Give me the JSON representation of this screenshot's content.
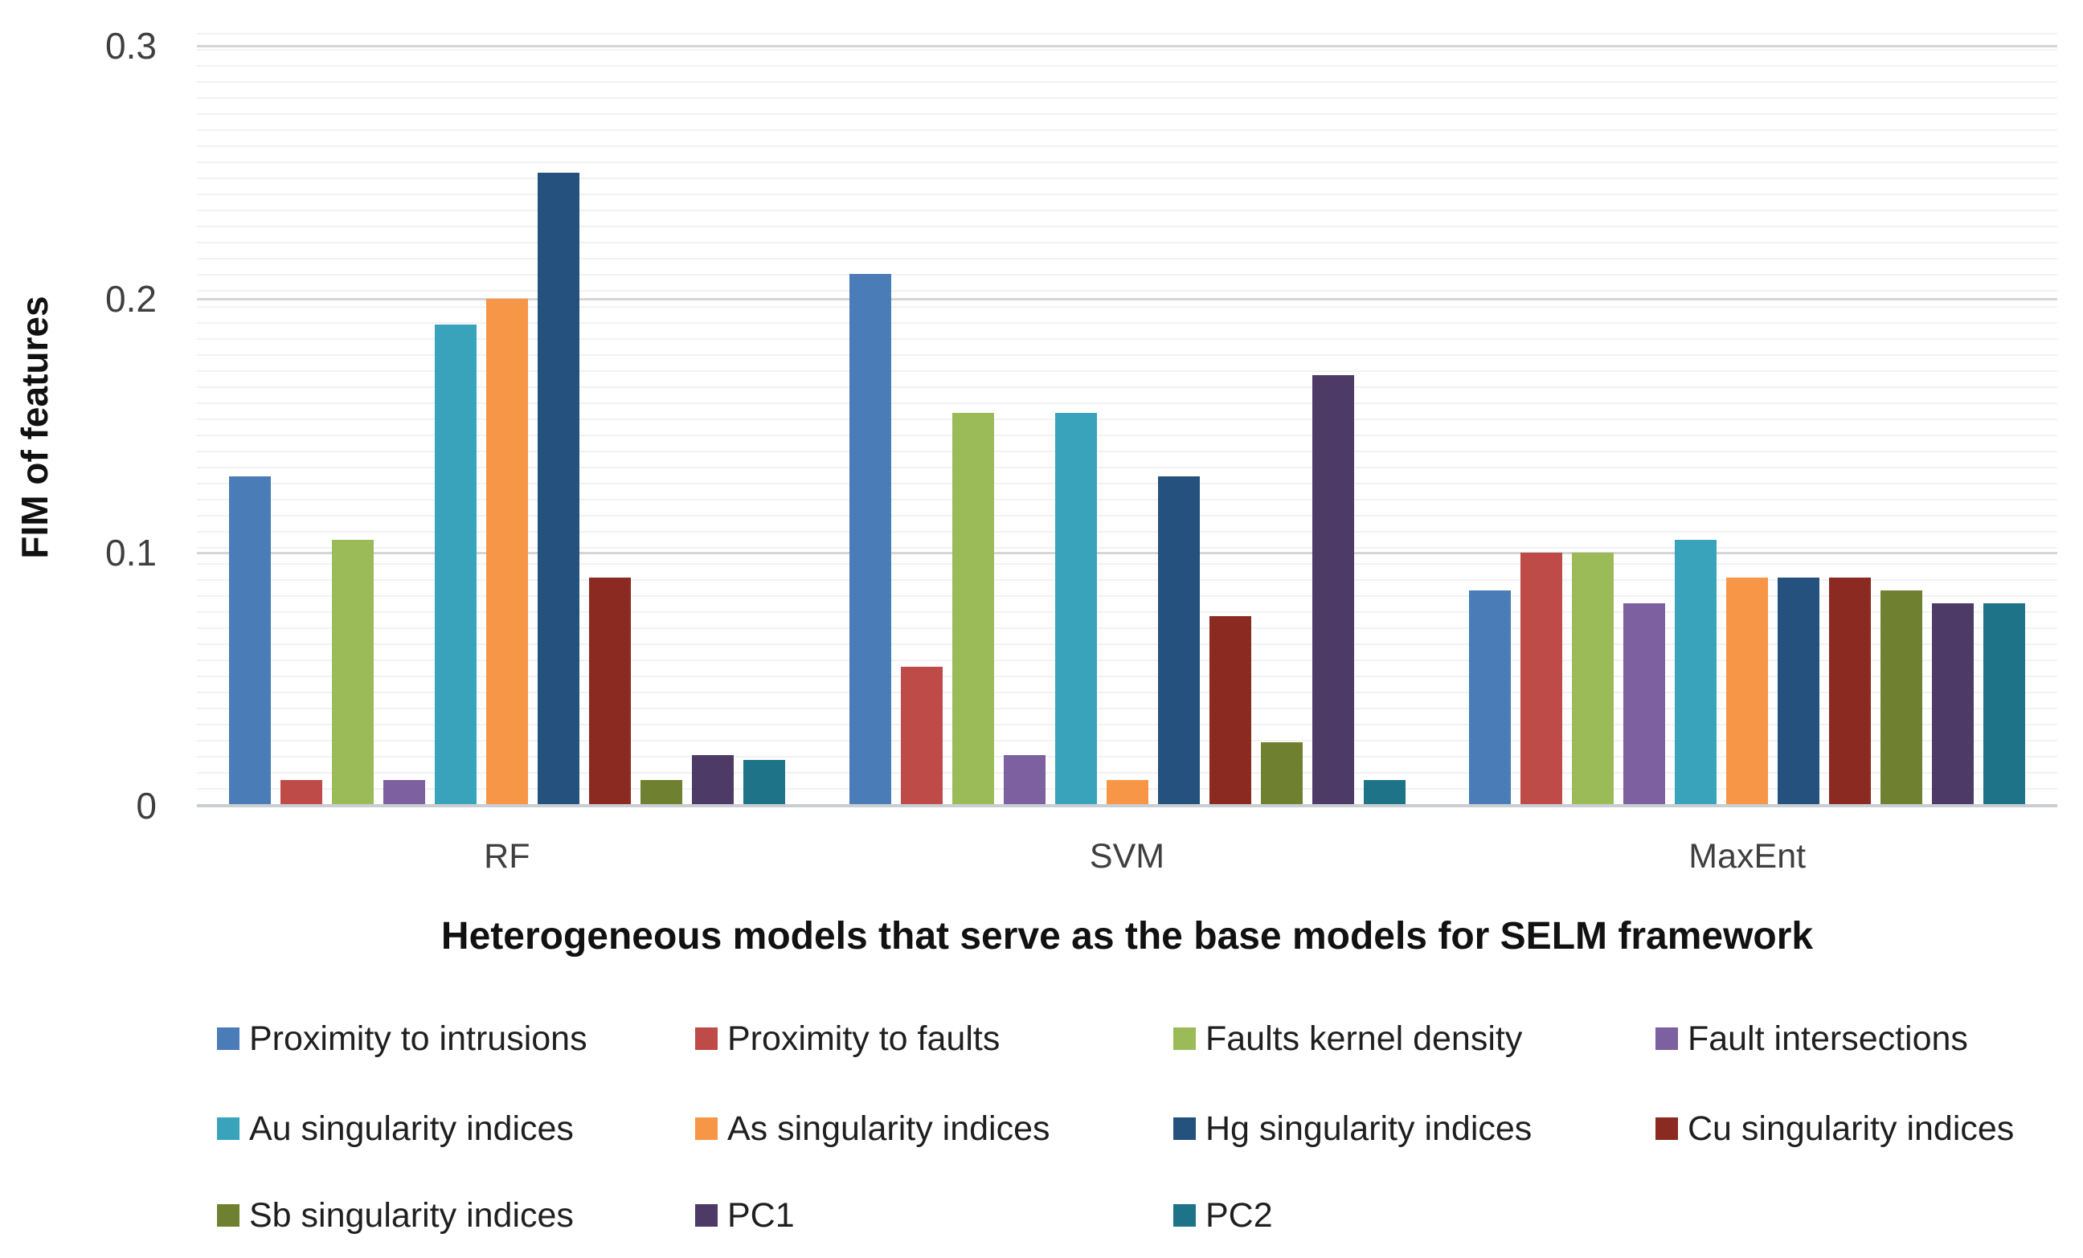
{
  "chart_data": {
    "type": "bar",
    "title": "",
    "xlabel": "Heterogeneous models that serve as the base models for SELM framework",
    "ylabel": "FIM of features",
    "categories": [
      "RF",
      "SVM",
      "MaxEnt"
    ],
    "y_ticks": [
      {
        "label": "0",
        "value": 0
      },
      {
        "label": "0.1",
        "value": 0.1
      },
      {
        "label": "0.2",
        "value": 0.2
      },
      {
        "label": "0.3",
        "value": 0.3
      }
    ],
    "ylim": [
      0,
      0.3
    ],
    "grid": true,
    "minor_grid": true,
    "legend_position": "bottom",
    "legend_rows": [
      [
        0,
        1,
        2,
        3
      ],
      [
        4,
        5,
        6,
        7
      ],
      [
        8,
        9,
        10
      ]
    ],
    "series": [
      {
        "name": "Proximity to intrusions",
        "color": "#4A7CB8",
        "values": [
          0.13,
          0.21,
          0.085
        ]
      },
      {
        "name": "Proximity to faults",
        "color": "#BE4B48",
        "values": [
          0.01,
          0.055,
          0.1
        ]
      },
      {
        "name": "Faults kernel density",
        "color": "#9BBB59",
        "values": [
          0.105,
          0.155,
          0.1
        ]
      },
      {
        "name": "Fault intersections",
        "color": "#7D60A0",
        "values": [
          0.01,
          0.02,
          0.08
        ]
      },
      {
        "name": "Au singularity indices",
        "color": "#39A3BC",
        "values": [
          0.19,
          0.155,
          0.105
        ]
      },
      {
        "name": "As singularity indices",
        "color": "#F79646",
        "values": [
          0.2,
          0.01,
          0.09
        ]
      },
      {
        "name": "Hg singularity indices",
        "color": "#25517E",
        "values": [
          0.25,
          0.13,
          0.09
        ]
      },
      {
        "name": "Cu singularity indices",
        "color": "#8B2A21",
        "values": [
          0.09,
          0.075,
          0.09
        ]
      },
      {
        "name": "Sb singularity indices",
        "color": "#6F8030",
        "values": [
          0.01,
          0.025,
          0.085
        ]
      },
      {
        "name": "PC1",
        "color": "#4E3A67",
        "values": [
          0.02,
          0.17,
          0.08
        ]
      },
      {
        "name": "PC2",
        "color": "#1F7389",
        "values": [
          0.018,
          0.01,
          0.08
        ]
      }
    ]
  }
}
